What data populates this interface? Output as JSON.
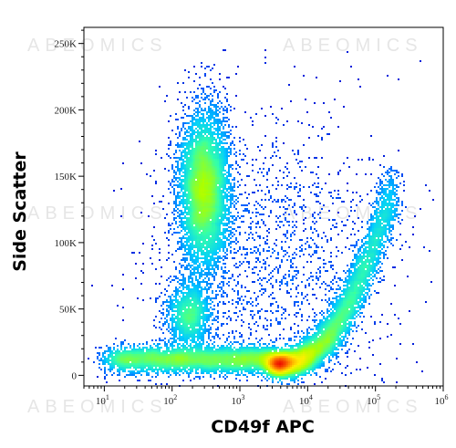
{
  "chart_data": {
    "type": "heatmap",
    "subtype": "flow-cytometry-density-scatter",
    "title": "",
    "xlabel": "CD49f APC",
    "ylabel": "Side Scatter",
    "x_scale": "log",
    "xlim": [
      5,
      1000000
    ],
    "ylim": [
      -8000,
      262144
    ],
    "x_ticks": [
      {
        "value": 10,
        "base": "10",
        "exp": "1"
      },
      {
        "value": 100,
        "base": "10",
        "exp": "2"
      },
      {
        "value": 1000,
        "base": "10",
        "exp": "3"
      },
      {
        "value": 10000,
        "base": "10",
        "exp": "4"
      },
      {
        "value": 100000,
        "base": "10",
        "exp": "5"
      },
      {
        "value": 1000000,
        "base": "10",
        "exp": "6"
      }
    ],
    "y_ticks": [
      {
        "value": 0,
        "label": "0"
      },
      {
        "value": 50000,
        "label": "50K"
      },
      {
        "value": 100000,
        "label": "100K"
      },
      {
        "value": 150000,
        "label": "150K"
      },
      {
        "value": 200000,
        "label": "200K"
      },
      {
        "value": 250000,
        "label": "250K"
      }
    ],
    "colormap": [
      "#0000cc",
      "#0066ff",
      "#00ccff",
      "#33ffaa",
      "#aaff00",
      "#ffee00",
      "#ff8800",
      "#ee1100"
    ],
    "populations": [
      {
        "x_center": 300,
        "y_center": 140000,
        "x_spread_decades": 0.18,
        "y_spread": 30000,
        "weight": 0.26
      },
      {
        "x_center": 180,
        "y_center": 45000,
        "x_spread_decades": 0.16,
        "y_spread": 13000,
        "weight": 0.06
      },
      {
        "x_center": 200,
        "y_center": 12000,
        "x_spread_decades": 0.35,
        "y_spread": 5000,
        "weight": 0.2
      },
      {
        "x_center": 12000,
        "y_center": 20000,
        "x_spread_decades": 0.35,
        "y_spread": 12000,
        "weight": 0.3
      },
      {
        "x_center": 3000,
        "y_center": 80000,
        "x_spread_decades": 0.9,
        "y_spread": 60000,
        "weight": 0.08
      }
    ],
    "grid": false,
    "legend": "none"
  },
  "watermark": {
    "text": "ABEOMICS",
    "color": "#e6e6e6"
  }
}
